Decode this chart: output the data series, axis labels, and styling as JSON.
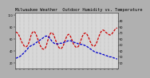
{
  "title": "Milwaukee Weather  Outdoor Humidity vs. Temperature",
  "title_fontsize": 3.8,
  "background_color": "#d8d8d8",
  "fig_color": "#b0b0b0",
  "red_line_color": "#cc0000",
  "blue_line_color": "#0000cc",
  "ylim": [
    10,
    105
  ],
  "n_points": 120,
  "temp_data": [
    72,
    71,
    70,
    68,
    65,
    62,
    58,
    55,
    52,
    50,
    48,
    47,
    47,
    48,
    50,
    53,
    57,
    62,
    67,
    70,
    72,
    73,
    72,
    70,
    67,
    63,
    59,
    55,
    51,
    48,
    46,
    44,
    43,
    43,
    44,
    46,
    50,
    55,
    60,
    65,
    68,
    70,
    71,
    70,
    68,
    65,
    61,
    57,
    53,
    50,
    47,
    45,
    44,
    44,
    45,
    47,
    50,
    54,
    58,
    62,
    65,
    67,
    68,
    67,
    65,
    62,
    58,
    54,
    51,
    49,
    47,
    46,
    46,
    47,
    49,
    52,
    56,
    60,
    64,
    67,
    69,
    70,
    70,
    69,
    67,
    64,
    61,
    57,
    54,
    51,
    49,
    48,
    48,
    49,
    51,
    54,
    58,
    62,
    66,
    69,
    72,
    74,
    75,
    75,
    74,
    73,
    71,
    70,
    69,
    68,
    67,
    67,
    68,
    69,
    71,
    73,
    75,
    77,
    78,
    79
  ],
  "hum_data": [
    28,
    28,
    29,
    29,
    30,
    31,
    32,
    33,
    35,
    36,
    38,
    39,
    41,
    42,
    44,
    46,
    47,
    48,
    49,
    49,
    50,
    51,
    52,
    53,
    54,
    55,
    56,
    57,
    58,
    59,
    60,
    61,
    62,
    63,
    64,
    65,
    65,
    65,
    64,
    63,
    61,
    59,
    57,
    55,
    54,
    53,
    52,
    52,
    52,
    52,
    52,
    52,
    53,
    53,
    53,
    54,
    54,
    55,
    55,
    56,
    56,
    57,
    57,
    57,
    57,
    57,
    56,
    56,
    55,
    54,
    54,
    53,
    53,
    52,
    52,
    52,
    51,
    51,
    51,
    50,
    50,
    49,
    49,
    48,
    47,
    46,
    45,
    44,
    43,
    42,
    41,
    40,
    39,
    38,
    38,
    37,
    37,
    36,
    36,
    36,
    35,
    35,
    34,
    34,
    33,
    33,
    32,
    32,
    31,
    31,
    30,
    30,
    30,
    29,
    29,
    28,
    28,
    27,
    27,
    26
  ],
  "right_yticks": [
    20,
    30,
    40,
    50,
    60,
    70,
    80,
    90
  ],
  "left_yticks": [
    20,
    40,
    60,
    80,
    100
  ],
  "n_xticks": 25
}
